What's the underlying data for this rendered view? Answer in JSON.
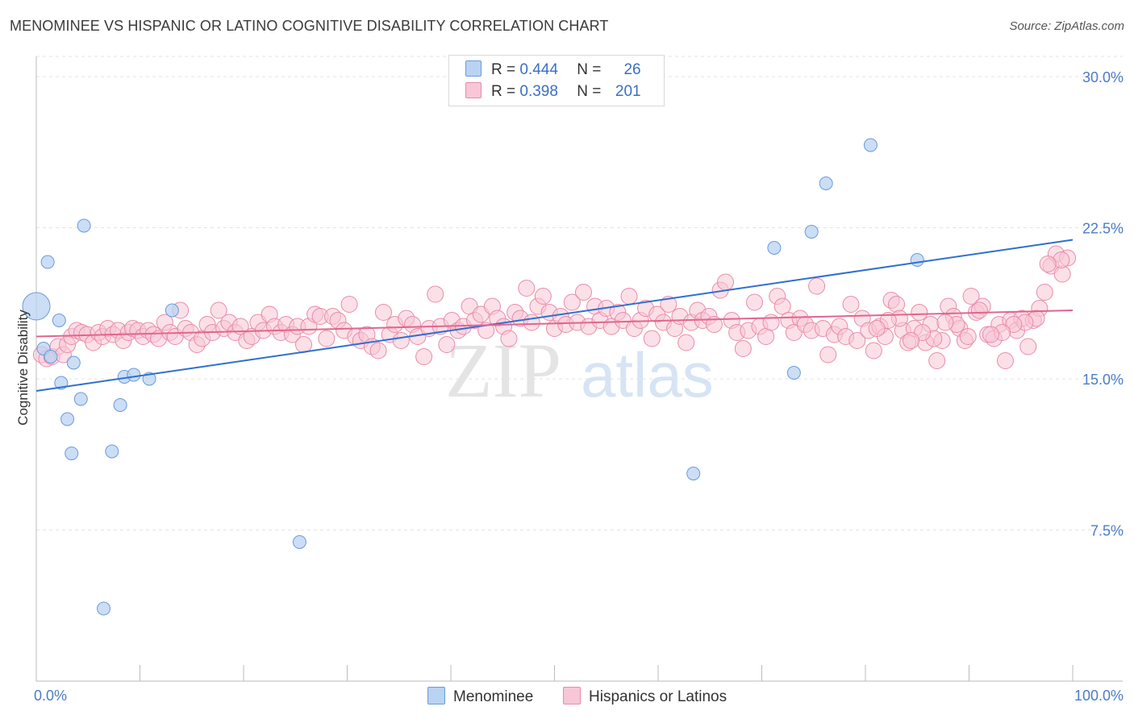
{
  "title": "MENOMINEE VS HISPANIC OR LATINO COGNITIVE DISABILITY CORRELATION CHART",
  "source": "Source: ZipAtlas.com",
  "watermark": {
    "zip": "ZIP",
    "atlas": "atlas"
  },
  "legend": {
    "rows": [
      {
        "r_label": "R =",
        "r_value": "0.444",
        "n_label": "N =",
        "n_value": "26"
      },
      {
        "r_label": "R =",
        "r_value": "0.398",
        "n_label": "N =",
        "n_value": "201"
      }
    ]
  },
  "colors": {
    "menominee_fill": "#b9d3f3",
    "menominee_stroke": "#6b9bd8",
    "menominee_line": "#2f6fd0",
    "hispanic_fill": "#f8c6d6",
    "hispanic_stroke": "#e88aaa",
    "hispanic_line": "#e2658e",
    "tick_text": "#4a7cc9",
    "grid": "#e3e3e3"
  },
  "chart_data": {
    "type": "scatter",
    "title": "MENOMINEE VS HISPANIC OR LATINO COGNITIVE DISABILITY CORRELATION CHART",
    "xlabel": "",
    "ylabel": "Cognitive Disability",
    "xlim": [
      0,
      100
    ],
    "ylim": [
      0,
      31
    ],
    "x_tick_labels": [
      "0.0%",
      "100.0%"
    ],
    "y_ticks": [
      7.5,
      15.0,
      22.5,
      30.0
    ],
    "y_tick_labels": [
      "7.5%",
      "15.0%",
      "22.5%",
      "30.0%"
    ],
    "grid": "horizontal dashed",
    "legend_position": "top-center",
    "series": [
      {
        "name": "Menominee",
        "r": 0.444,
        "n": 26,
        "trend": {
          "x": [
            0,
            100
          ],
          "y": [
            14.4,
            21.9
          ]
        },
        "points": [
          [
            0,
            18.6
          ],
          [
            0.7,
            16.5
          ],
          [
            1.1,
            20.8
          ],
          [
            1.4,
            16.1
          ],
          [
            2.2,
            17.9
          ],
          [
            2.4,
            14.8
          ],
          [
            3.0,
            13.0
          ],
          [
            3.4,
            11.3
          ],
          [
            3.6,
            15.8
          ],
          [
            4.3,
            14.0
          ],
          [
            4.6,
            22.6
          ],
          [
            6.5,
            3.6
          ],
          [
            7.3,
            11.4
          ],
          [
            8.1,
            13.7
          ],
          [
            8.5,
            15.1
          ],
          [
            9.4,
            15.2
          ],
          [
            10.9,
            15.0
          ],
          [
            13.1,
            18.4
          ],
          [
            25.4,
            6.9
          ],
          [
            63.4,
            10.3
          ],
          [
            71.2,
            21.5
          ],
          [
            73.1,
            15.3
          ],
          [
            74.8,
            22.3
          ],
          [
            76.2,
            24.7
          ],
          [
            80.5,
            26.6
          ],
          [
            85.0,
            20.9
          ]
        ]
      },
      {
        "name": "Hispanics or Latinos",
        "r": 0.398,
        "n": 201,
        "trend": {
          "x": [
            0,
            100
          ],
          "y": [
            17.1,
            18.4
          ]
        },
        "points": [
          [
            0.5,
            16.2
          ],
          [
            1.0,
            16.0
          ],
          [
            1.5,
            16.1
          ],
          [
            2.1,
            16.6
          ],
          [
            2.6,
            16.2
          ],
          [
            3.0,
            16.7
          ],
          [
            3.4,
            17.1
          ],
          [
            3.9,
            17.4
          ],
          [
            4.4,
            17.3
          ],
          [
            4.9,
            17.2
          ],
          [
            5.5,
            16.8
          ],
          [
            6.0,
            17.3
          ],
          [
            6.4,
            17.1
          ],
          [
            6.9,
            17.5
          ],
          [
            7.4,
            17.2
          ],
          [
            7.9,
            17.4
          ],
          [
            8.4,
            16.9
          ],
          [
            8.9,
            17.3
          ],
          [
            9.3,
            17.5
          ],
          [
            9.8,
            17.4
          ],
          [
            10.3,
            17.1
          ],
          [
            10.8,
            17.4
          ],
          [
            11.3,
            17.2
          ],
          [
            11.8,
            17.0
          ],
          [
            12.4,
            17.8
          ],
          [
            12.9,
            17.3
          ],
          [
            13.4,
            17.1
          ],
          [
            13.9,
            18.4
          ],
          [
            14.4,
            17.5
          ],
          [
            14.9,
            17.3
          ],
          [
            15.5,
            16.7
          ],
          [
            16.0,
            17.0
          ],
          [
            16.5,
            17.7
          ],
          [
            17.0,
            17.3
          ],
          [
            17.6,
            18.4
          ],
          [
            18.1,
            17.5
          ],
          [
            18.6,
            17.8
          ],
          [
            19.2,
            17.3
          ],
          [
            19.7,
            17.6
          ],
          [
            20.3,
            16.9
          ],
          [
            20.8,
            17.1
          ],
          [
            21.4,
            17.8
          ],
          [
            21.9,
            17.4
          ],
          [
            22.5,
            18.2
          ],
          [
            23.0,
            17.6
          ],
          [
            23.6,
            17.3
          ],
          [
            24.1,
            17.7
          ],
          [
            24.7,
            17.2
          ],
          [
            25.2,
            17.6
          ],
          [
            25.8,
            16.7
          ],
          [
            26.3,
            17.6
          ],
          [
            26.9,
            18.2
          ],
          [
            27.4,
            18.1
          ],
          [
            28.0,
            17.0
          ],
          [
            28.6,
            18.1
          ],
          [
            29.1,
            17.9
          ],
          [
            29.7,
            17.4
          ],
          [
            30.2,
            18.7
          ],
          [
            30.8,
            17.1
          ],
          [
            31.3,
            16.9
          ],
          [
            31.9,
            17.2
          ],
          [
            32.4,
            16.6
          ],
          [
            33.0,
            16.4
          ],
          [
            33.5,
            18.3
          ],
          [
            34.1,
            17.2
          ],
          [
            34.6,
            17.7
          ],
          [
            35.2,
            16.9
          ],
          [
            35.7,
            18.0
          ],
          [
            36.3,
            17.7
          ],
          [
            36.8,
            17.1
          ],
          [
            37.4,
            16.1
          ],
          [
            37.9,
            17.5
          ],
          [
            38.5,
            19.2
          ],
          [
            39.0,
            17.6
          ],
          [
            39.6,
            16.7
          ],
          [
            40.1,
            17.9
          ],
          [
            40.7,
            17.4
          ],
          [
            41.2,
            17.6
          ],
          [
            41.8,
            18.6
          ],
          [
            42.3,
            17.9
          ],
          [
            42.9,
            18.2
          ],
          [
            43.4,
            17.4
          ],
          [
            44.0,
            18.6
          ],
          [
            44.5,
            18.0
          ],
          [
            45.1,
            17.6
          ],
          [
            45.6,
            17.0
          ],
          [
            46.2,
            18.3
          ],
          [
            46.7,
            18.0
          ],
          [
            47.3,
            19.5
          ],
          [
            47.8,
            17.8
          ],
          [
            48.4,
            18.6
          ],
          [
            48.9,
            19.1
          ],
          [
            49.5,
            18.3
          ],
          [
            50.0,
            17.5
          ],
          [
            50.6,
            18.1
          ],
          [
            51.1,
            17.7
          ],
          [
            51.7,
            18.8
          ],
          [
            52.2,
            17.8
          ],
          [
            52.8,
            19.3
          ],
          [
            53.3,
            17.6
          ],
          [
            53.9,
            18.6
          ],
          [
            54.4,
            17.9
          ],
          [
            55.0,
            18.5
          ],
          [
            55.5,
            17.6
          ],
          [
            56.1,
            18.3
          ],
          [
            56.6,
            17.9
          ],
          [
            57.2,
            19.1
          ],
          [
            57.7,
            17.5
          ],
          [
            58.3,
            17.9
          ],
          [
            58.8,
            18.5
          ],
          [
            59.4,
            17.0
          ],
          [
            59.9,
            18.2
          ],
          [
            60.5,
            17.8
          ],
          [
            61.0,
            18.7
          ],
          [
            61.6,
            17.5
          ],
          [
            62.1,
            18.1
          ],
          [
            62.7,
            16.8
          ],
          [
            63.2,
            17.8
          ],
          [
            63.8,
            18.4
          ],
          [
            64.3,
            17.9
          ],
          [
            64.9,
            18.1
          ],
          [
            65.4,
            17.7
          ],
          [
            66.0,
            19.4
          ],
          [
            66.5,
            19.8
          ],
          [
            67.1,
            17.9
          ],
          [
            67.6,
            17.3
          ],
          [
            68.2,
            16.5
          ],
          [
            68.7,
            17.4
          ],
          [
            69.3,
            18.8
          ],
          [
            69.8,
            17.6
          ],
          [
            70.4,
            17.1
          ],
          [
            70.9,
            17.8
          ],
          [
            71.5,
            19.1
          ],
          [
            72.0,
            18.6
          ],
          [
            72.6,
            17.9
          ],
          [
            73.1,
            17.3
          ],
          [
            73.7,
            18.0
          ],
          [
            74.2,
            17.7
          ],
          [
            74.8,
            17.4
          ],
          [
            75.3,
            19.6
          ],
          [
            75.9,
            17.5
          ],
          [
            76.4,
            16.2
          ],
          [
            77.0,
            17.2
          ],
          [
            77.5,
            17.6
          ],
          [
            78.1,
            17.1
          ],
          [
            78.6,
            18.7
          ],
          [
            79.2,
            16.9
          ],
          [
            79.7,
            18.0
          ],
          [
            80.3,
            17.4
          ],
          [
            80.8,
            16.4
          ],
          [
            81.4,
            17.6
          ],
          [
            81.9,
            17.1
          ],
          [
            82.5,
            18.9
          ],
          [
            83.0,
            18.7
          ],
          [
            83.6,
            17.4
          ],
          [
            84.1,
            16.8
          ],
          [
            84.7,
            17.5
          ],
          [
            85.2,
            18.3
          ],
          [
            85.8,
            16.8
          ],
          [
            86.3,
            17.7
          ],
          [
            86.9,
            15.9
          ],
          [
            87.4,
            16.9
          ],
          [
            88.0,
            18.6
          ],
          [
            88.5,
            18.1
          ],
          [
            89.1,
            17.5
          ],
          [
            89.6,
            16.9
          ],
          [
            90.2,
            19.1
          ],
          [
            90.7,
            18.3
          ],
          [
            91.3,
            18.6
          ],
          [
            91.8,
            17.2
          ],
          [
            92.4,
            17.0
          ],
          [
            92.9,
            17.7
          ],
          [
            93.5,
            15.9
          ],
          [
            94.0,
            17.9
          ],
          [
            94.6,
            17.4
          ],
          [
            95.1,
            18.0
          ],
          [
            95.7,
            16.6
          ],
          [
            96.2,
            17.9
          ],
          [
            96.8,
            18.5
          ],
          [
            97.3,
            19.3
          ],
          [
            97.9,
            20.6
          ],
          [
            98.4,
            21.2
          ],
          [
            99.0,
            20.2
          ],
          [
            99.5,
            21.0
          ],
          [
            98.9,
            20.9
          ],
          [
            97.6,
            20.7
          ],
          [
            96.5,
            18.0
          ],
          [
            95.4,
            17.8
          ],
          [
            94.3,
            17.7
          ],
          [
            93.2,
            17.3
          ],
          [
            92.1,
            17.2
          ],
          [
            91.0,
            18.4
          ],
          [
            89.9,
            17.1
          ],
          [
            88.8,
            17.7
          ],
          [
            87.7,
            17.8
          ],
          [
            86.6,
            17.0
          ],
          [
            85.5,
            17.3
          ],
          [
            84.4,
            16.9
          ],
          [
            83.3,
            18.0
          ],
          [
            82.2,
            17.9
          ],
          [
            81.1,
            17.5
          ]
        ]
      }
    ]
  }
}
